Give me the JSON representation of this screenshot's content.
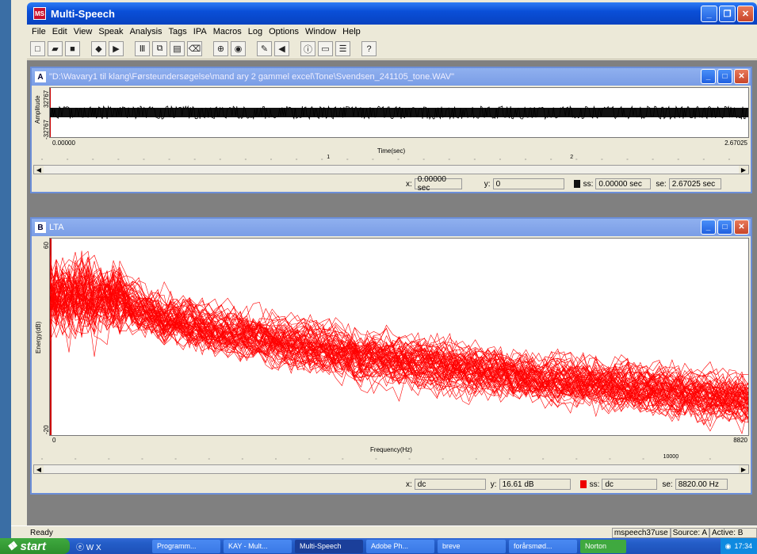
{
  "app": {
    "title": "Multi-Speech"
  },
  "menu": [
    "File",
    "Edit",
    "View",
    "Speak",
    "Analysis",
    "Tags",
    "IPA",
    "Macros",
    "Log",
    "Options",
    "Window",
    "Help"
  ],
  "windowA": {
    "label": "A",
    "title": "\"D:\\Wavary1 til klang\\Førsteundersøgelse\\mand ary 2 gammel excel\\Tone\\Svendsen_241105_tone.WAV\"",
    "ylabel": "Amplitude",
    "ytop": "32767",
    "ybottom": "-32767",
    "xstart": "0.00000",
    "xend": "2.67025",
    "xlabel": "Time(sec)",
    "ruler_mark1": "1",
    "ruler_mark2": "2",
    "x_label": "x:",
    "x_value": "0.00000 sec",
    "y_label": "y:",
    "y_value": "0",
    "ss_label": "ss:",
    "ss_value": "0.00000 sec",
    "se_label": "se:",
    "se_value": "2.67025 sec"
  },
  "windowB": {
    "label": "B",
    "title": "LTA",
    "ylabel": "Energy(dB)",
    "ytop": "60",
    "ybottom": "-20",
    "xstart": "0",
    "xend": "8820",
    "xlabel": "Frequency(Hz)",
    "ruler_mark": "10000",
    "x_label": "x:",
    "x_value": "dc",
    "y_label": "y:",
    "y_value": "16.61 dB",
    "ss_label": "ss:",
    "ss_value": "dc",
    "se_label": "se:",
    "se_value": "8820.00 Hz",
    "line_color": "#ff0000"
  },
  "status": {
    "ready": "Ready",
    "user": "mspeech37use",
    "source": "Source: A",
    "active": "Active: B"
  },
  "taskbar": {
    "start": "start",
    "tasks": [
      "Programm...",
      "KAY - Mult...",
      "Multi-Speech",
      "Adobe Ph...",
      "breve",
      "forårsmød...",
      "Norton"
    ],
    "clock": "17:34"
  }
}
